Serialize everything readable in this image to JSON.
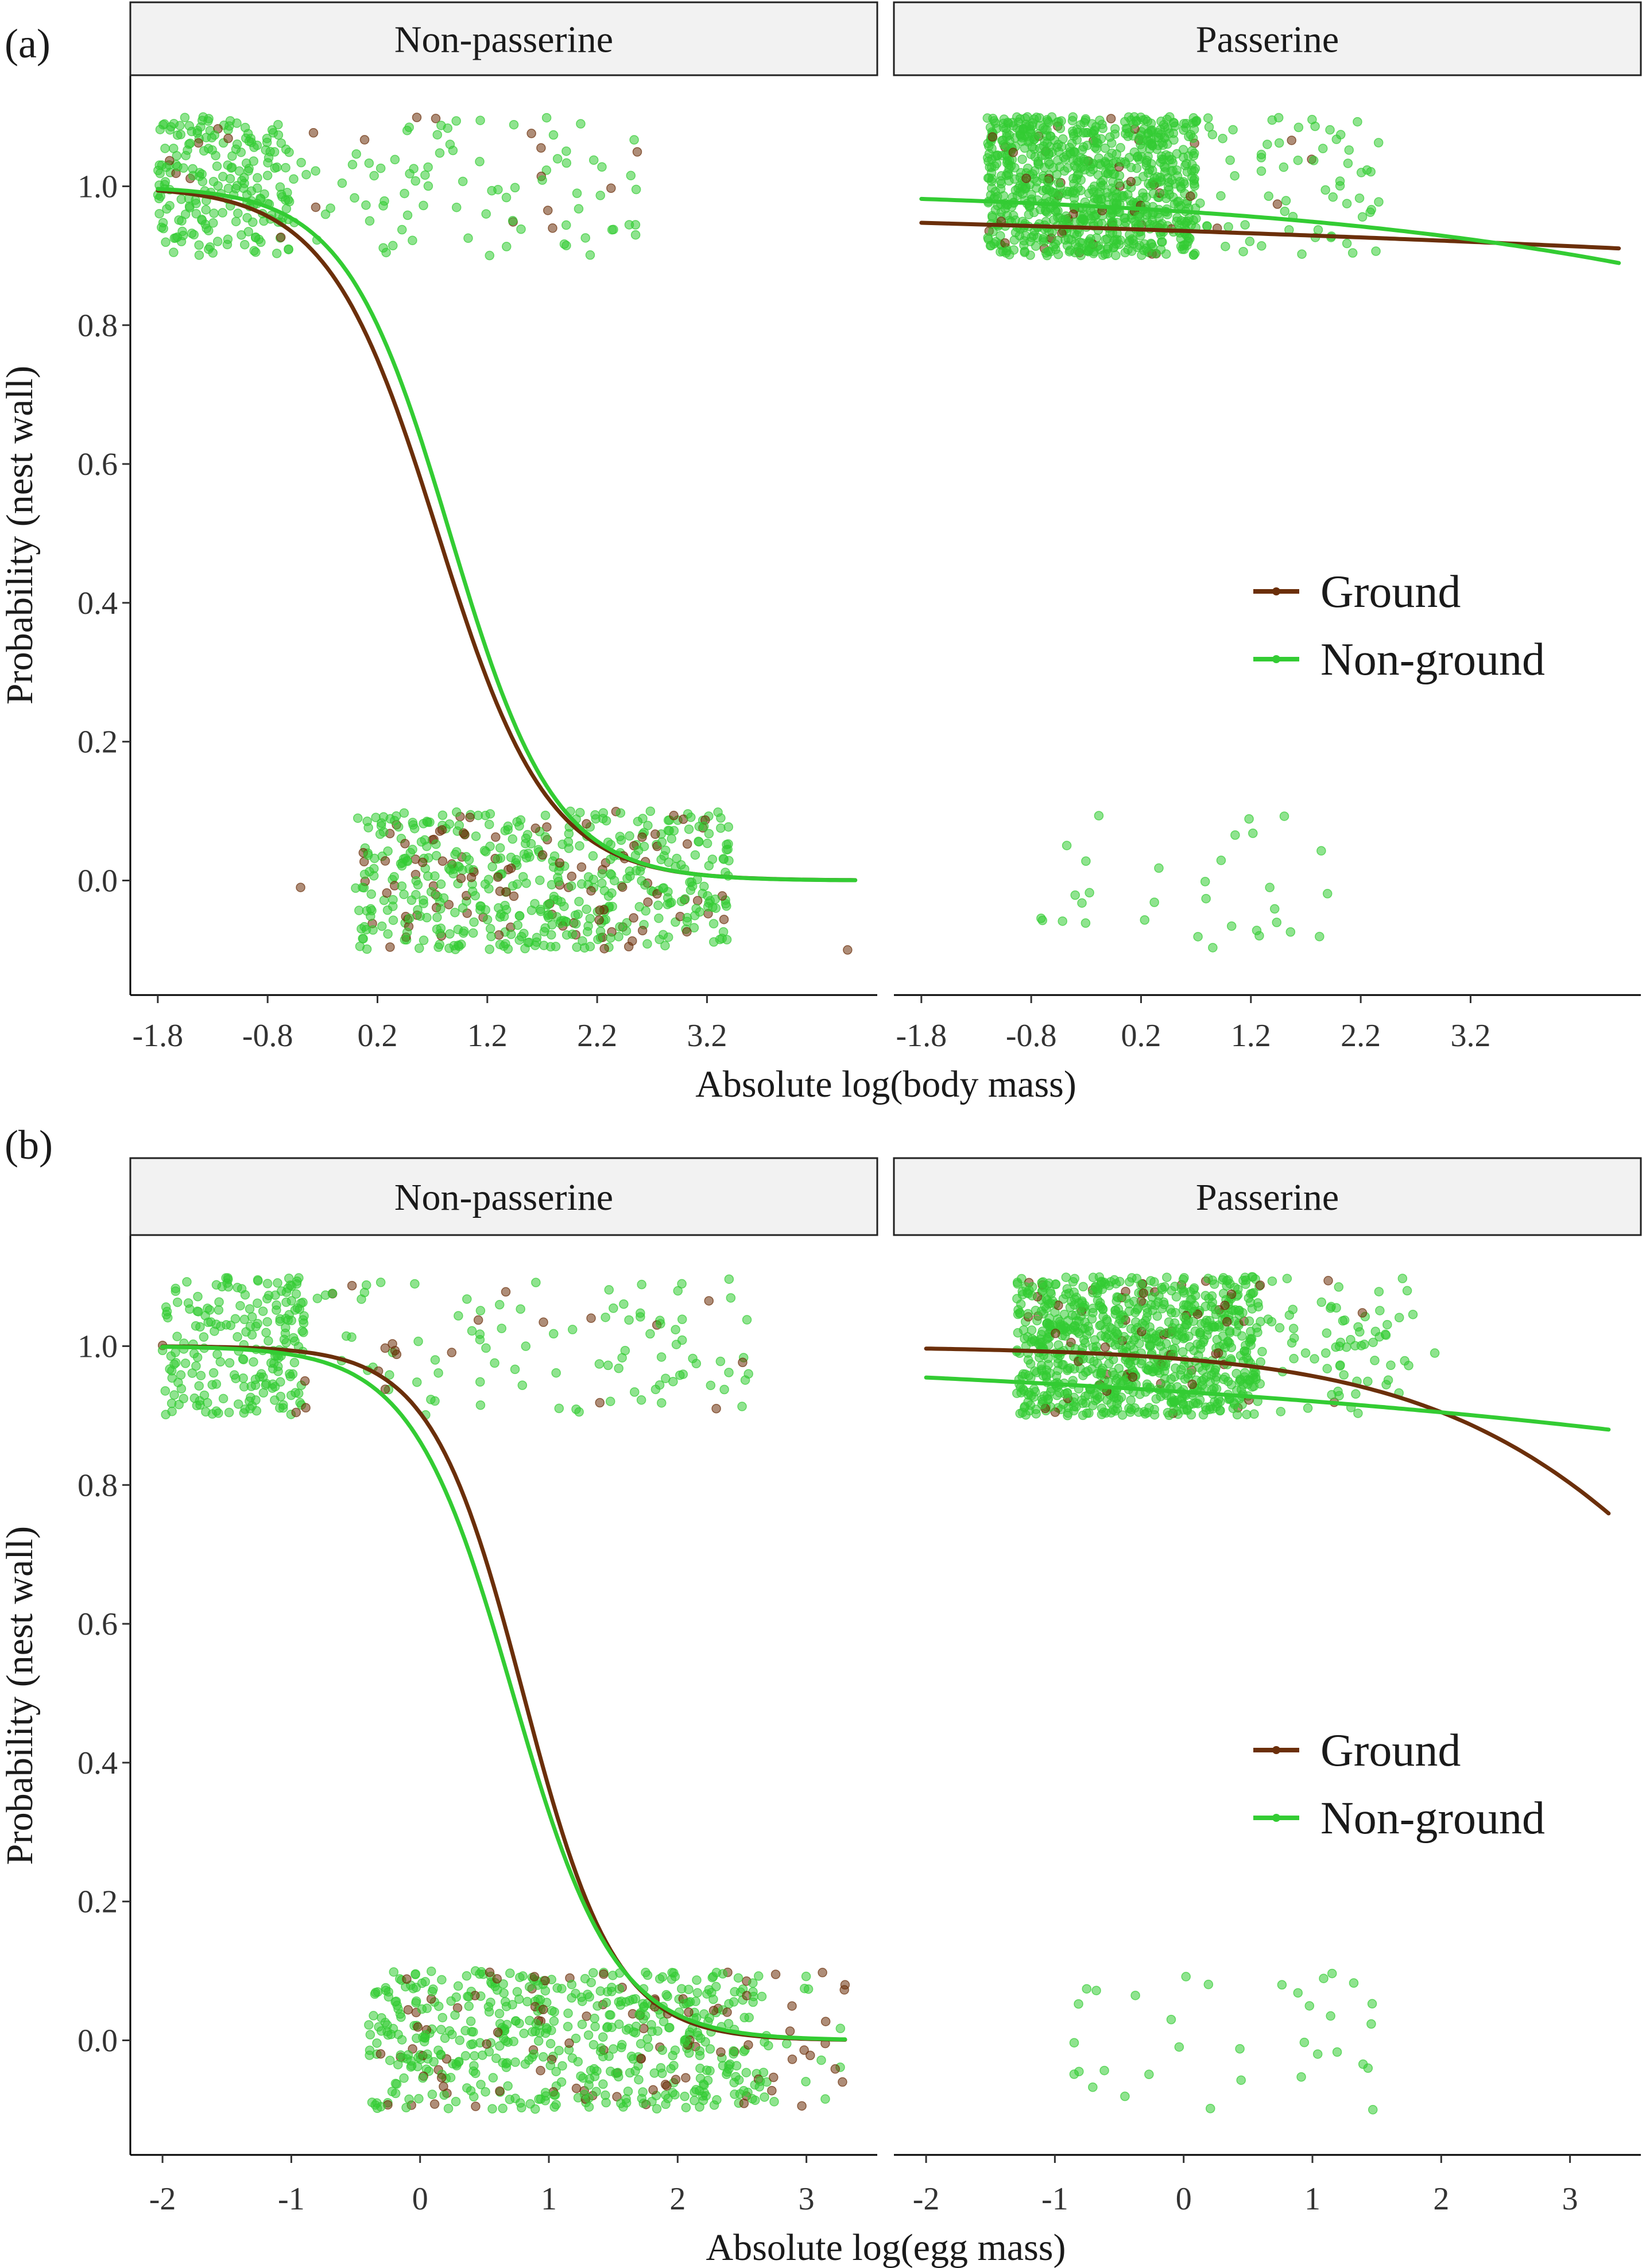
{
  "colors": {
    "ground": "#6b2f0a",
    "non_ground": "#33cc33",
    "strip_fill": "#f2f2f2",
    "axis": "#000000"
  },
  "chart_data": [
    {
      "type": "scatter",
      "panel_label": "(a)",
      "xlabel": "Absolute log(body mass)",
      "ylabel": "Probability (nest wall)",
      "xticks": [
        -1.8,
        -0.8,
        0.2,
        1.2,
        2.2,
        3.2
      ],
      "xtick_labels": [
        "-1.8",
        "-0.8",
        "0.2",
        "1.2",
        "2.2",
        "3.2"
      ],
      "xlim": [
        -2.05,
        4.75
      ],
      "yticks": [
        0.0,
        0.2,
        0.4,
        0.6,
        0.8,
        1.0
      ],
      "ytick_labels": [
        "0.0",
        "0.2",
        "0.4",
        "0.6",
        "0.8",
        "1.0"
      ],
      "ylim": [
        -0.165,
        1.16
      ],
      "legend": {
        "placement": "right",
        "entries": [
          "Ground",
          "Non-ground"
        ]
      },
      "facets": [
        {
          "title": "Non-passerine",
          "curves": [
            {
              "series": "Ground",
              "x0": 0.75,
              "k": 2.0,
              "x": [
                -1.8,
                4.55
              ]
            },
            {
              "series": "Non-ground",
              "x0": 0.86,
              "k": 2.1,
              "x": [
                -1.8,
                4.55
              ]
            }
          ],
          "points": {
            "top": [
              {
                "range": [
                  -1.8,
                  -0.6
                ],
                "n": 220,
                "ground_share": 0.02
              },
              {
                "range": [
                  -0.6,
                  2.6
                ],
                "n": 95,
                "ground_share": 0.15
              }
            ],
            "bottom": [
              {
                "range": [
                  0.0,
                  3.4
                ],
                "n": 560,
                "ground_share": 0.18
              }
            ],
            "extra": [
              [
                -0.5,
                -0.01,
                "Ground"
              ],
              [
                4.48,
                -0.1,
                "Ground"
              ],
              [
                2.55,
                0.93,
                "Non-ground"
              ],
              [
                2.05,
                1.09,
                "Non-ground"
              ]
            ]
          }
        },
        {
          "title": "Passerine",
          "curves": [
            {
              "series": "Ground",
              "a": 2.73,
              "b": -0.09,
              "x": [
                -1.8,
                4.55
              ]
            },
            {
              "series": "Non-ground",
              "a": 3.45,
              "b": -0.3,
              "x": [
                -1.8,
                4.55
              ]
            }
          ],
          "points": {
            "top": [
              {
                "range": [
                  -1.2,
                  0.7
                ],
                "n": 900,
                "ground_share": 0.07
              },
              {
                "range": [
                  0.7,
                  2.4
                ],
                "n": 70,
                "ground_share": 0.02
              }
            ],
            "bottom": [
              {
                "range": [
                  -0.9,
                  2.0
                ],
                "n": 32,
                "ground_share": 0.0
              }
            ],
            "extra": []
          }
        }
      ]
    },
    {
      "type": "scatter",
      "panel_label": "(b)",
      "xlabel": "Absolute log(egg mass)",
      "ylabel": "Probability (nest wall)",
      "xticks": [
        -2,
        -1,
        0,
        1,
        2,
        3
      ],
      "xtick_labels": [
        "-2",
        "-1",
        "0",
        "1",
        "2",
        "3"
      ],
      "xlim": [
        -2.25,
        3.55
      ],
      "yticks": [
        0.0,
        0.2,
        0.4,
        0.6,
        0.8,
        1.0
      ],
      "ytick_labels": [
        "0.0",
        "0.2",
        "0.4",
        "0.6",
        "0.8",
        "1.0"
      ],
      "ylim": [
        -0.165,
        1.16
      ],
      "legend": {
        "placement": "right",
        "entries": [
          "Ground",
          "Non-ground"
        ]
      },
      "facets": [
        {
          "title": "Non-passerine",
          "curves": [
            {
              "series": "Ground",
              "x0": 0.8,
              "k": 2.8,
              "x": [
                -2.0,
                3.3
              ]
            },
            {
              "series": "Non-ground",
              "x0": 0.72,
              "k": 2.55,
              "x": [
                -2.0,
                3.3
              ]
            }
          ],
          "points": {
            "top": [
              {
                "range": [
                  -2.0,
                  -0.9
                ],
                "n": 210,
                "ground_share": 0.02
              },
              {
                "range": [
                  -0.9,
                  2.6
                ],
                "n": 110,
                "ground_share": 0.14
              }
            ],
            "bottom": [
              {
                "range": [
                  -0.4,
                  2.7
                ],
                "n": 600,
                "ground_share": 0.14
              },
              {
                "range": [
                  2.7,
                  3.3
                ],
                "n": 25,
                "ground_share": 0.45
              }
            ],
            "extra": [
              [
                3.3,
                0.08,
                "Ground"
              ],
              [
                3.28,
                -0.06,
                "Ground"
              ],
              [
                2.3,
                0.91,
                "Ground"
              ],
              [
                2.55,
                0.96,
                "Non-ground"
              ]
            ]
          }
        },
        {
          "title": "Passerine",
          "curves": [
            {
              "series": "Ground",
              "x0": 4.65,
              "k": 0.85,
              "x": [
                -2.0,
                3.3
              ]
            },
            {
              "series": "Non-ground",
              "a": 2.65,
              "b": -0.2,
              "x": [
                -2.0,
                3.3
              ]
            }
          ],
          "points": {
            "top": [
              {
                "range": [
                  -1.3,
                  0.6
                ],
                "n": 900,
                "ground_share": 0.07
              },
              {
                "range": [
                  0.6,
                  1.8
                ],
                "n": 70,
                "ground_share": 0.02
              }
            ],
            "bottom": [
              {
                "range": [
                  -1.0,
                  1.6
                ],
                "n": 34,
                "ground_share": 0.0
              }
            ],
            "extra": [
              [
                1.95,
                0.99,
                "Non-ground"
              ],
              [
                1.15,
                0.93,
                "Non-ground"
              ]
            ]
          }
        }
      ]
    }
  ]
}
